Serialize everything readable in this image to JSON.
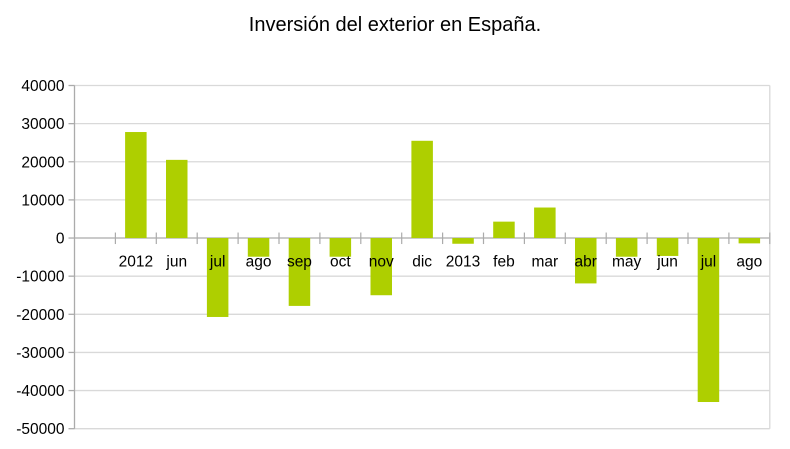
{
  "chart_data": {
    "type": "bar",
    "title": "Inversión del exterior en España.",
    "categories": [
      "2012",
      "jun",
      "jul",
      "ago",
      "sep",
      "oct",
      "nov",
      "dic",
      "2013",
      "feb",
      "mar",
      "abr",
      "may",
      "jun",
      "jul",
      "ago"
    ],
    "values": [
      27800,
      20500,
      -20700,
      -4900,
      -17800,
      -4900,
      -15000,
      25500,
      -1500,
      4300,
      8000,
      -11900,
      -4900,
      -4700,
      -43000,
      -1400
    ],
    "xlabel": "",
    "ylabel": "",
    "ylim": [
      -50000,
      40000
    ],
    "ytick_step": 10000,
    "ytick_labels": [
      "-50000",
      "-40000",
      "-30000",
      "-20000",
      "-10000",
      "0",
      "10000",
      "20000",
      "30000",
      "40000"
    ],
    "grid": true,
    "legend_position": "none",
    "leading_empty_slots": 1,
    "bar_color": "#aecf00",
    "grid_color": "#d9d9d9",
    "axis_color": "#ababab",
    "text_color": "#000000"
  }
}
